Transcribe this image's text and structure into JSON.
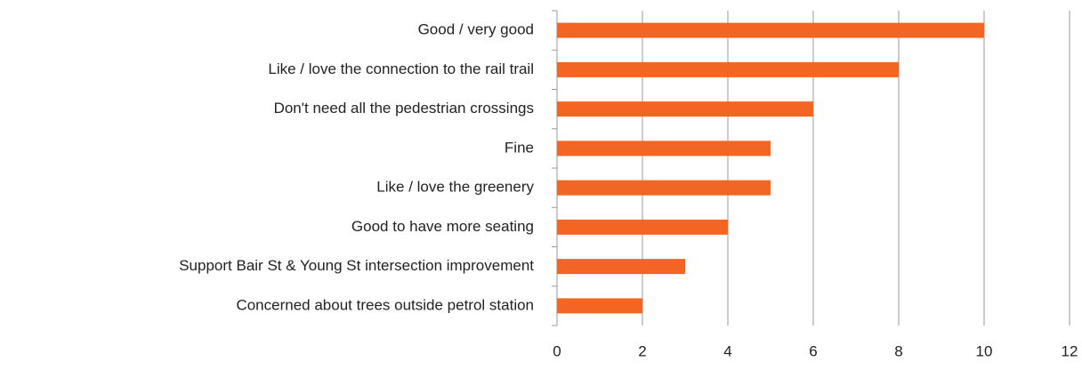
{
  "chart_data": {
    "type": "hbar",
    "categories": [
      "Good / very good",
      "Like / love the connection to the rail trail",
      "Don't need all the pedestrian crossings",
      "Fine",
      "Like / love the greenery",
      "Good to have more seating",
      "Support Bair St & Young St intersection improvement",
      "Concerned about trees outside petrol station"
    ],
    "values": [
      10,
      8,
      6,
      5,
      5,
      4,
      3,
      2
    ],
    "color": "#f26522",
    "xlim": [
      0,
      12
    ],
    "xticks": [
      0,
      2,
      4,
      6,
      8,
      10,
      12
    ],
    "grid": true
  }
}
